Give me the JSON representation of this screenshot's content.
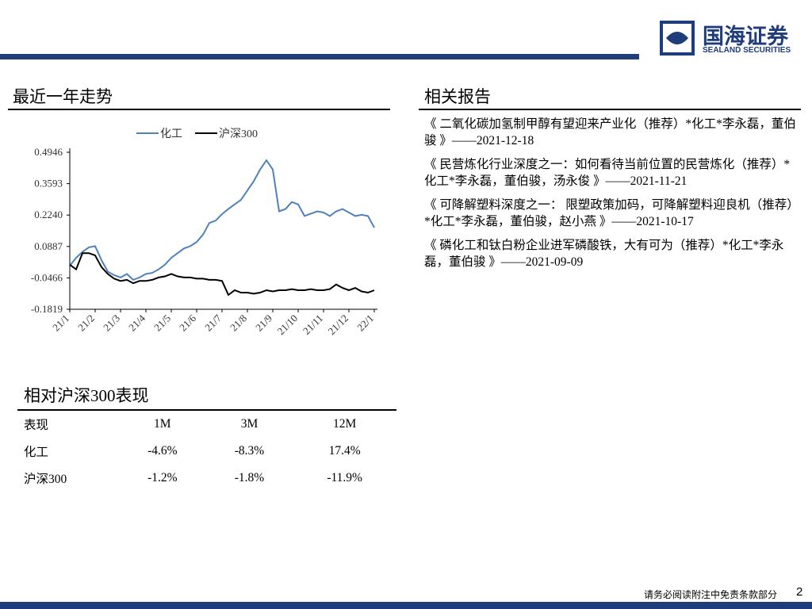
{
  "header": {
    "brand": "国海证券",
    "brand_en": "SEALAND SECURITIES"
  },
  "chart_section": {
    "title": "最近一年走势"
  },
  "chart_data": {
    "type": "line",
    "categories": [
      "21/1",
      null,
      null,
      null,
      "21/2",
      null,
      null,
      null,
      "21/3",
      null,
      null,
      null,
      "21/4",
      null,
      null,
      null,
      "21/5",
      null,
      null,
      null,
      "21/6",
      null,
      null,
      null,
      "21/7",
      null,
      null,
      null,
      "21/8",
      null,
      null,
      null,
      "21/9",
      null,
      null,
      null,
      "21/10",
      null,
      null,
      null,
      "21/11",
      null,
      null,
      null,
      "21/12",
      null,
      null,
      null,
      "22/1"
    ],
    "series": [
      {
        "name": "化工",
        "color": "#4f81bd",
        "values": [
          0.006,
          0.04,
          0.065,
          0.085,
          0.09,
          0.03,
          -0.02,
          -0.035,
          -0.045,
          -0.03,
          -0.055,
          -0.045,
          -0.03,
          -0.025,
          -0.01,
          0.01,
          0.04,
          0.06,
          0.08,
          0.09,
          0.108,
          0.14,
          0.19,
          0.2,
          0.228,
          0.25,
          0.27,
          0.29,
          0.33,
          0.37,
          0.42,
          0.46,
          0.42,
          0.24,
          0.25,
          0.28,
          0.27,
          0.22,
          0.23,
          0.24,
          0.235,
          0.22,
          0.24,
          0.25,
          0.235,
          0.22,
          0.225,
          0.22,
          0.17
        ]
      },
      {
        "name": "沪深300",
        "color": "#000000",
        "values": [
          0.01,
          -0.01,
          0.06,
          0.06,
          0.05,
          0.0,
          -0.03,
          -0.05,
          -0.06,
          -0.055,
          -0.07,
          -0.06,
          -0.06,
          -0.055,
          -0.045,
          -0.04,
          -0.03,
          -0.04,
          -0.045,
          -0.045,
          -0.05,
          -0.05,
          -0.055,
          -0.055,
          -0.06,
          -0.12,
          -0.1,
          -0.11,
          -0.11,
          -0.115,
          -0.11,
          -0.1,
          -0.105,
          -0.1,
          -0.1,
          -0.095,
          -0.1,
          -0.1,
          -0.095,
          -0.1,
          -0.1,
          -0.095,
          -0.075,
          -0.09,
          -0.1,
          -0.09,
          -0.105,
          -0.11,
          -0.1
        ]
      }
    ],
    "ylim": [
      -0.1819,
      0.4946
    ],
    "yticks": [
      -0.1819,
      -0.0466,
      0.0887,
      {
        "value": 0.224,
        "label": "0.2240"
      },
      0.3593,
      0.4946
    ],
    "grid": false,
    "legend": "top"
  },
  "table": {
    "title": "相对沪深300表现",
    "header": [
      "表现",
      "1M",
      "3M",
      "12M"
    ],
    "rows": [
      [
        "化工",
        "-4.6%",
        "-8.3%",
        "17.4%"
      ],
      [
        "沪深300",
        "-1.2%",
        "-1.8%",
        "-11.9%"
      ]
    ]
  },
  "reports": {
    "title": "相关报告",
    "items": [
      "《 二氧化碳加氢制甲醇有望迎来产业化（推荐）*化工*李永磊，董伯骏 》——2021-12-18",
      "《 民营炼化行业深度之一：如何看待当前位置的民营炼化（推荐）*化工*李永磊，董伯骏，汤永俊 》——2021-11-21",
      "《 可降解塑料深度之一： 限塑政策加码，可降解塑料迎良机（推荐）*化工*李永磊，董伯骏，赵小燕 》——2021-10-17",
      "《 磷化工和钛白粉企业进军磷酸铁，大有可为（推荐）*化工*李永磊，董伯骏 》——2021-09-09"
    ]
  },
  "footer": {
    "disclaimer": "请务必阅读附注中免责条款部分",
    "page": "2"
  }
}
